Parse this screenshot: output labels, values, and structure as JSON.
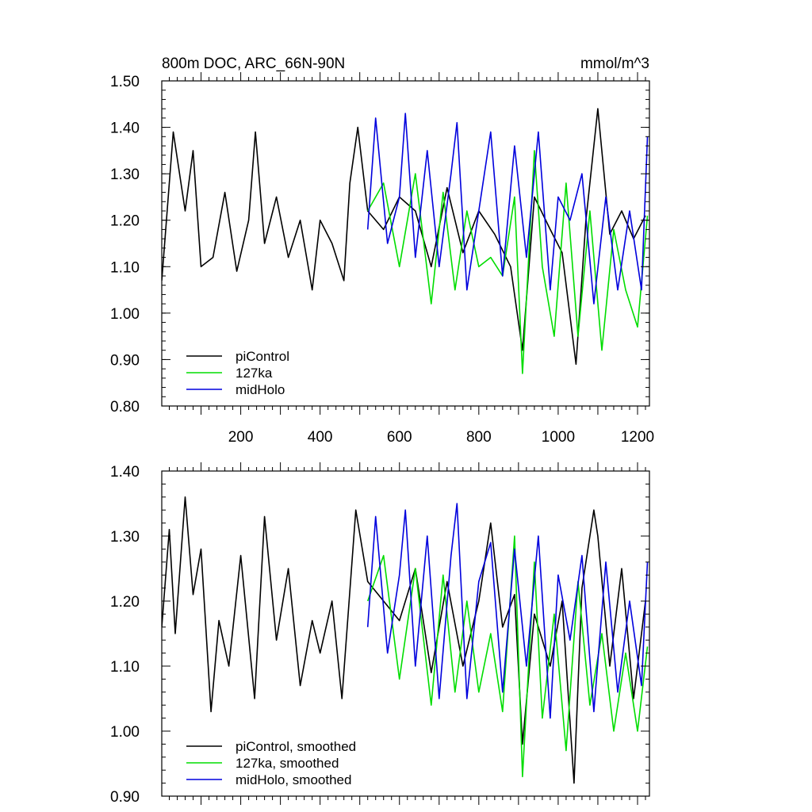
{
  "chart_data": [
    {
      "type": "line",
      "title": "800m DOC, ARC_66N-90N",
      "units": "mmol/m^3",
      "xlabel": "",
      "ylabel": "",
      "xlim": [
        1,
        1230
      ],
      "ylim": [
        0.8,
        1.5
      ],
      "xticks": [
        200,
        400,
        600,
        800,
        1000,
        1200
      ],
      "xtick_labels": [
        "200",
        "400",
        "600",
        "800",
        "1000",
        "1200"
      ],
      "yticks": [
        0.8,
        0.9,
        1.0,
        1.1,
        1.2,
        1.3,
        1.4,
        1.5
      ],
      "ytick_labels": [
        "0.80",
        "0.90",
        "1.00",
        "1.10",
        "1.20",
        "1.30",
        "1.40",
        "1.50"
      ],
      "grid": false,
      "legend_position": "bottom-left",
      "series": [
        {
          "name": "piControl",
          "color": "#000000",
          "x": [
            1,
            30,
            60,
            80,
            100,
            130,
            160,
            190,
            220,
            237,
            260,
            290,
            320,
            350,
            380,
            400,
            430,
            460,
            475,
            495,
            520,
            560,
            600,
            640,
            680,
            720,
            760,
            800,
            840,
            880,
            910,
            940,
            980,
            1010,
            1045,
            1070,
            1100,
            1130,
            1160,
            1190,
            1220
          ],
          "y": [
            1.07,
            1.39,
            1.22,
            1.35,
            1.1,
            1.12,
            1.26,
            1.09,
            1.2,
            1.39,
            1.15,
            1.25,
            1.12,
            1.2,
            1.05,
            1.2,
            1.15,
            1.07,
            1.28,
            1.4,
            1.22,
            1.18,
            1.25,
            1.22,
            1.1,
            1.27,
            1.13,
            1.22,
            1.17,
            1.1,
            0.92,
            1.25,
            1.18,
            1.13,
            0.89,
            1.2,
            1.44,
            1.17,
            1.22,
            1.16,
            1.21
          ]
        },
        {
          "name": "127ka",
          "color": "#00dd00",
          "x": [
            520,
            560,
            600,
            640,
            680,
            710,
            740,
            770,
            800,
            830,
            860,
            890,
            910,
            940,
            960,
            990,
            1020,
            1050,
            1080,
            1110,
            1140,
            1170,
            1200,
            1225
          ],
          "y": [
            1.22,
            1.28,
            1.1,
            1.3,
            1.02,
            1.26,
            1.05,
            1.22,
            1.1,
            1.12,
            1.08,
            1.25,
            0.87,
            1.35,
            1.1,
            0.95,
            1.28,
            0.95,
            1.22,
            0.92,
            1.18,
            1.05,
            0.97,
            1.21
          ]
        },
        {
          "name": "midHolo",
          "color": "#0000dd",
          "x": [
            520,
            540,
            570,
            600,
            615,
            640,
            670,
            700,
            730,
            745,
            770,
            800,
            830,
            860,
            890,
            920,
            950,
            980,
            1000,
            1030,
            1060,
            1090,
            1120,
            1150,
            1180,
            1210,
            1225
          ],
          "y": [
            1.18,
            1.42,
            1.15,
            1.25,
            1.43,
            1.12,
            1.35,
            1.1,
            1.3,
            1.41,
            1.05,
            1.22,
            1.39,
            1.08,
            1.36,
            1.12,
            1.39,
            1.05,
            1.25,
            1.2,
            1.3,
            1.02,
            1.25,
            1.05,
            1.22,
            1.05,
            1.38
          ]
        }
      ]
    },
    {
      "type": "line",
      "title": "",
      "xlabel": "",
      "ylabel": "",
      "xlim": [
        1,
        1230
      ],
      "ylim": [
        0.9,
        1.4
      ],
      "yticks": [
        0.9,
        1.0,
        1.1,
        1.2,
        1.3,
        1.4
      ],
      "ytick_labels": [
        "0.90",
        "1.00",
        "1.10",
        "1.20",
        "1.30",
        "1.40"
      ],
      "grid": false,
      "legend_position": "bottom-left",
      "series": [
        {
          "name": "piControl, smoothed",
          "color": "#000000",
          "x": [
            1,
            20,
            35,
            60,
            80,
            100,
            125,
            145,
            170,
            200,
            235,
            260,
            290,
            320,
            350,
            380,
            400,
            430,
            455,
            490,
            520,
            560,
            600,
            640,
            680,
            720,
            760,
            800,
            830,
            860,
            890,
            910,
            940,
            980,
            1010,
            1040,
            1060,
            1090,
            1100,
            1130,
            1160,
            1190,
            1220
          ],
          "y": [
            1.16,
            1.31,
            1.15,
            1.36,
            1.21,
            1.28,
            1.03,
            1.17,
            1.1,
            1.27,
            1.05,
            1.33,
            1.14,
            1.25,
            1.07,
            1.17,
            1.12,
            1.2,
            1.05,
            1.34,
            1.23,
            1.2,
            1.17,
            1.25,
            1.09,
            1.23,
            1.1,
            1.2,
            1.32,
            1.16,
            1.21,
            0.98,
            1.18,
            1.1,
            1.2,
            0.92,
            1.22,
            1.34,
            1.3,
            1.1,
            1.25,
            1.05,
            1.2
          ]
        },
        {
          "name": "127ka, smoothed",
          "color": "#00dd00",
          "x": [
            520,
            560,
            600,
            640,
            680,
            710,
            740,
            770,
            800,
            830,
            860,
            890,
            910,
            940,
            960,
            990,
            1020,
            1050,
            1080,
            1110,
            1140,
            1170,
            1200,
            1225
          ],
          "y": [
            1.2,
            1.27,
            1.08,
            1.25,
            1.04,
            1.24,
            1.06,
            1.2,
            1.06,
            1.15,
            1.03,
            1.3,
            0.93,
            1.26,
            1.02,
            1.18,
            0.97,
            1.23,
            1.04,
            1.15,
            1.0,
            1.12,
            1.0,
            1.13
          ]
        },
        {
          "name": "midHolo, smoothed",
          "color": "#0000dd",
          "x": [
            520,
            540,
            570,
            600,
            615,
            640,
            670,
            700,
            730,
            745,
            770,
            800,
            830,
            860,
            890,
            920,
            950,
            980,
            1000,
            1030,
            1060,
            1090,
            1120,
            1150,
            1180,
            1210,
            1225
          ],
          "y": [
            1.16,
            1.33,
            1.12,
            1.24,
            1.34,
            1.1,
            1.3,
            1.05,
            1.27,
            1.35,
            1.05,
            1.23,
            1.29,
            1.06,
            1.28,
            1.1,
            1.3,
            1.02,
            1.24,
            1.14,
            1.27,
            1.03,
            1.26,
            1.06,
            1.2,
            1.07,
            1.26
          ]
        }
      ]
    }
  ]
}
